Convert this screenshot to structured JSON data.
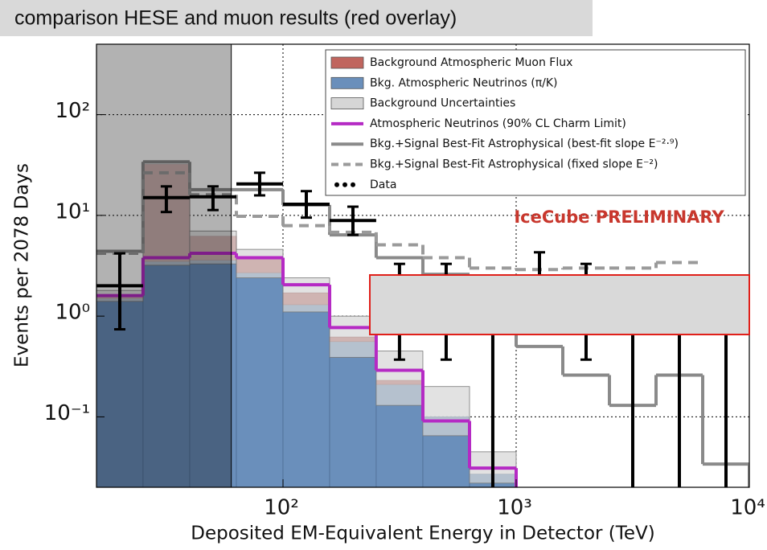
{
  "chart_data": {
    "type": "histogram",
    "title": "comparison HESE and muon results (red overlay)",
    "xlabel": "Deposited EM-Equivalent Energy in Detector (TeV)",
    "ylabel": "Events per 2078 Days",
    "annotation": "IceCube PRELIMINARY",
    "xscale": "log",
    "yscale": "log",
    "grid": true,
    "legend": "upper right",
    "xlim": [
      15.85,
      10000
    ],
    "ylim": [
      0.02,
      500
    ],
    "xticks": [
      {
        "value": 100,
        "label": "10²"
      },
      {
        "value": 1000,
        "label": "10³"
      },
      {
        "value": 10000,
        "label": "10⁴"
      }
    ],
    "yticks": [
      {
        "value": 0.1,
        "label": "10⁻¹"
      },
      {
        "value": 1,
        "label": "10⁰"
      },
      {
        "value": 10,
        "label": "10¹"
      },
      {
        "value": 100,
        "label": "10²"
      }
    ],
    "shaded_below": 60,
    "bins": [
      15.85,
      25.1,
      39.8,
      63.1,
      100,
      158.5,
      251,
      398,
      631,
      1000,
      1585,
      2512,
      3981,
      6310,
      10000
    ],
    "series": [
      {
        "name": "Background Atmospheric Muon Flux",
        "style": "stack",
        "color": "#c0655e",
        "values": [
          0.1,
          28.5,
          2.6,
          1.1,
          0.4,
          0.06,
          0.02,
          null,
          null,
          null,
          null,
          null,
          null,
          null
        ]
      },
      {
        "name": "Bkg. Atmospheric Neutrinos (π/K)",
        "style": "fill",
        "color": "#6a8fbb",
        "values": [
          1.5,
          3.5,
          3.6,
          2.7,
          1.3,
          0.56,
          0.21,
          0.1,
          0.027,
          null,
          null,
          null,
          null,
          null
        ]
      },
      {
        "name": "Background Uncertainties",
        "style": "band",
        "color": "#d6d6d6",
        "values": [
          1.8,
          34,
          7,
          4.6,
          2.4,
          1.0,
          0.45,
          0.2,
          0.045,
          null,
          null,
          null,
          null,
          null
        ],
        "lower": [
          1.4,
          3.2,
          3.3,
          2.4,
          1.1,
          0.39,
          0.13,
          0.065,
          0.022,
          null,
          null,
          null,
          null,
          null
        ]
      },
      {
        "name": "Atmospheric Neutrinos (90% CL Charm Limit)",
        "style": "line",
        "color": "#b52ac4",
        "values": [
          1.6,
          3.8,
          4.2,
          3.8,
          2.05,
          0.77,
          0.29,
          0.091,
          0.031,
          null,
          null,
          null,
          null,
          null
        ]
      },
      {
        "name": "Bkg.+Signal Best-Fit Astrophysical (best-fit slope E⁻²·⁹)",
        "style": "line",
        "color": "#8a8a8a",
        "values": [
          4.4,
          34,
          18,
          18,
          12.7,
          6.4,
          3.8,
          2.6,
          1.4,
          0.5,
          0.26,
          0.13,
          0.26,
          0.034
        ]
      },
      {
        "name": "Bkg.+Signal Best-Fit Astrophysical (fixed slope E⁻²)",
        "style": "dashed",
        "color": "#9a9a9a",
        "values": [
          4.2,
          26.5,
          16,
          9.8,
          7.9,
          6.8,
          5.1,
          3.8,
          3.0,
          2.9,
          3.0,
          3.0,
          3.4,
          null
        ]
      }
    ],
    "data": {
      "name": "Data",
      "color": "#000000",
      "x": [
        19.95,
        31.6,
        50.1,
        79.4,
        125.9,
        199.5,
        316,
        501,
        794,
        1259,
        1995,
        3162,
        5012,
        7943
      ],
      "values": [
        2,
        15,
        15.3,
        20.5,
        12.9,
        8.9,
        1,
        1,
        0,
        2,
        1,
        0,
        0,
        0
      ],
      "err_low": [
        0.74,
        10.8,
        11.3,
        15.8,
        9.5,
        6.4,
        0.37,
        0.37,
        null,
        0.7,
        0.37,
        null,
        null,
        null
      ],
      "err_high": [
        4.2,
        19.4,
        19.4,
        26.5,
        17.4,
        12.2,
        3.3,
        3.3,
        1.8,
        4.3,
        3.3,
        1.8,
        1.8,
        1.8
      ]
    }
  }
}
